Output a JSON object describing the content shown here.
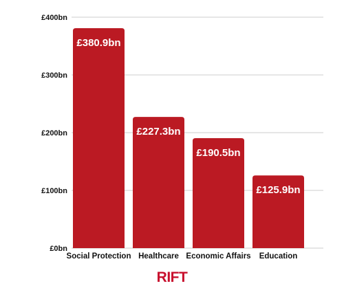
{
  "chart_data": {
    "type": "bar",
    "categories": [
      "Social Protection",
      "Healthcare",
      "Economic Affairs",
      "Education"
    ],
    "values": [
      380.9,
      227.3,
      190.5,
      125.9
    ],
    "value_labels": [
      "£380.9bn",
      "£227.3bn",
      "£190.5bn",
      "£125.9bn"
    ],
    "y_ticks": [
      0,
      100,
      200,
      300,
      400
    ],
    "y_tick_labels": [
      "£0bn",
      "£100bn",
      "£200bn",
      "£300bn",
      "£400bn"
    ],
    "ylim": [
      0,
      400
    ],
    "grid": true,
    "title": "",
    "xlabel": "",
    "ylabel": ""
  },
  "colors": {
    "bar": "#bb1a23",
    "grid": "#cccccc",
    "text": "#111111",
    "value_text": "#ffffff",
    "logo": "#c8102e"
  },
  "branding": {
    "logo_text": "RIFT"
  }
}
